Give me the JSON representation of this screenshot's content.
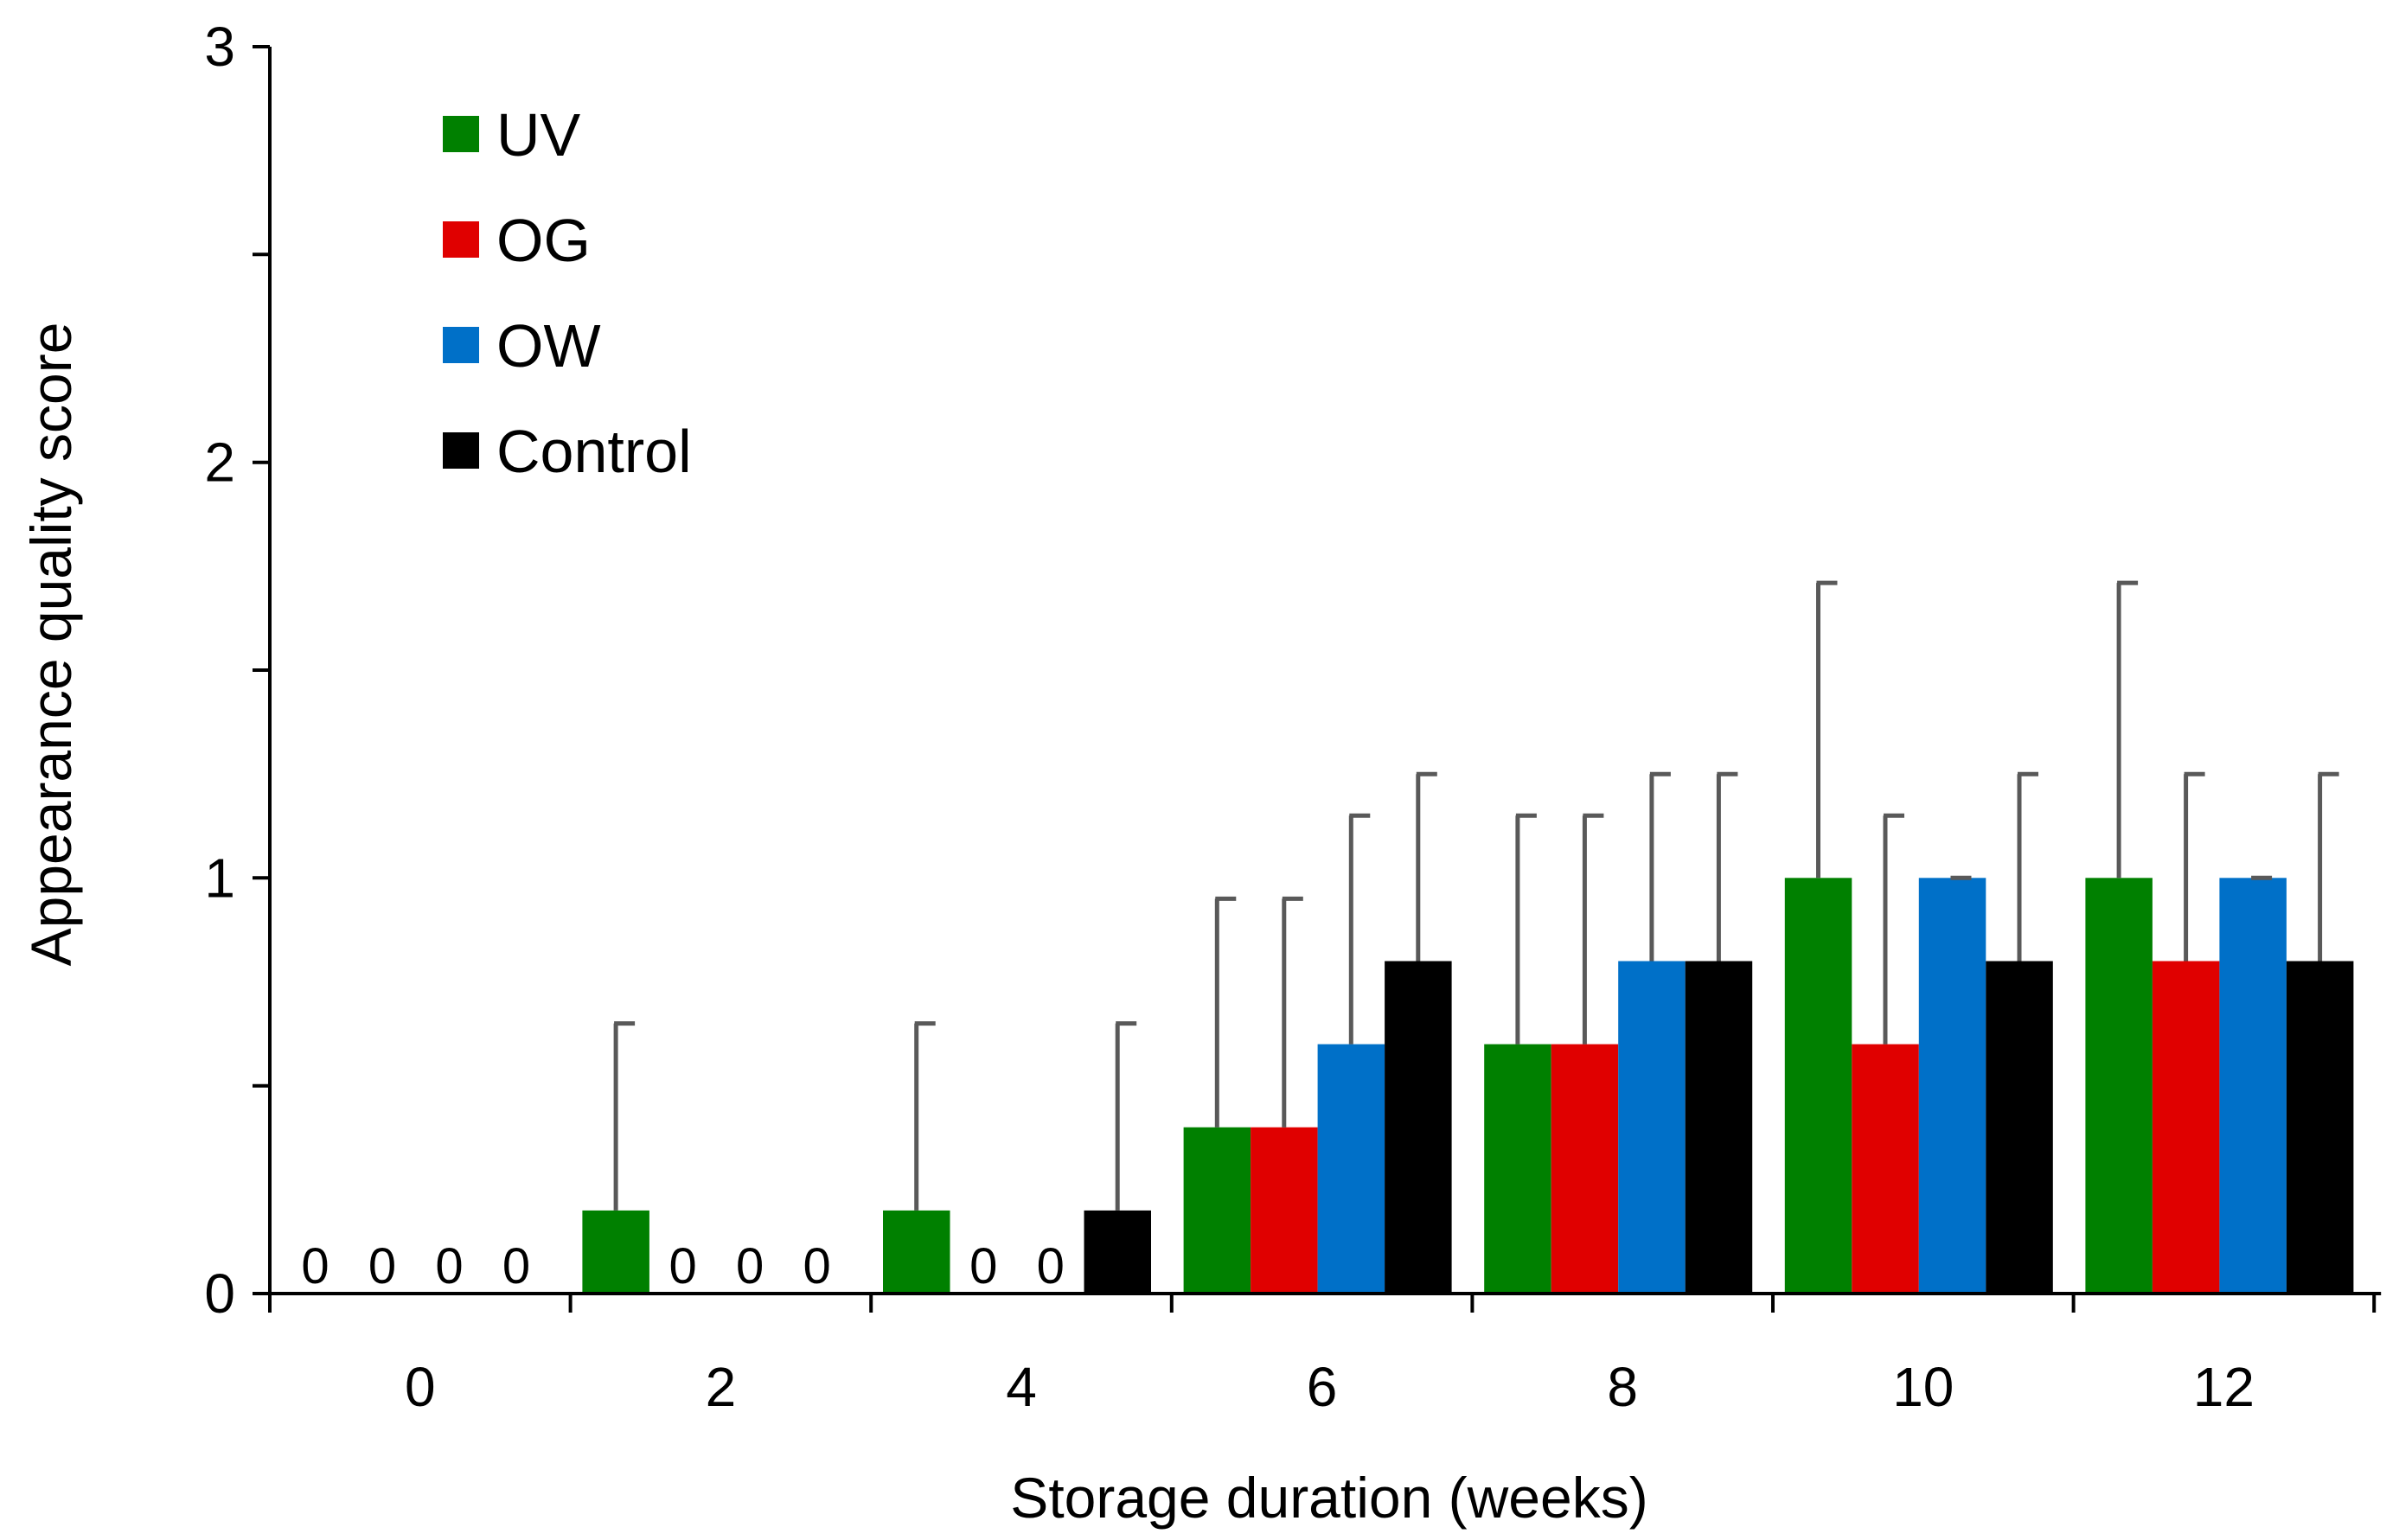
{
  "chart_data": {
    "type": "bar",
    "title": "",
    "xlabel": "Storage duration (weeks)",
    "ylabel": "Appearance quality score",
    "ylim": [
      0,
      3
    ],
    "y_ticks": [
      "0",
      "1",
      "2",
      "3"
    ],
    "categories": [
      "0",
      "2",
      "4",
      "6",
      "8",
      "10",
      "12"
    ],
    "legend_position": "top-left",
    "grid": false,
    "zero_label": "0",
    "series": [
      {
        "name": "UV",
        "color": "#008000",
        "values": [
          0,
          0.2,
          0.2,
          0.4,
          0.6,
          1.0,
          1.0
        ],
        "error_top": [
          null,
          0.65,
          0.65,
          0.95,
          1.15,
          1.71,
          1.71
        ],
        "show_zero_label": [
          true,
          false,
          false,
          false,
          false,
          false,
          false
        ]
      },
      {
        "name": "OG",
        "color": "#e00000",
        "values": [
          0,
          0,
          0,
          0.4,
          0.6,
          0.6,
          0.8
        ],
        "error_top": [
          null,
          null,
          null,
          0.95,
          1.15,
          1.15,
          1.25
        ],
        "show_zero_label": [
          true,
          true,
          true,
          false,
          false,
          false,
          false
        ]
      },
      {
        "name": "OW",
        "color": "#0070c8",
        "values": [
          0,
          0,
          0,
          0.6,
          0.8,
          1.0,
          1.0
        ],
        "error_top": [
          null,
          null,
          null,
          1.15,
          1.25,
          1.0,
          1.0
        ],
        "show_zero_label": [
          true,
          true,
          true,
          false,
          false,
          false,
          false
        ]
      },
      {
        "name": "Control",
        "color": "#000000",
        "values": [
          0,
          0,
          0.2,
          0.8,
          0.8,
          0.8,
          0.8
        ],
        "error_top": [
          null,
          null,
          0.65,
          1.25,
          1.25,
          1.25,
          1.25
        ],
        "show_zero_label": [
          true,
          true,
          false,
          false,
          false,
          false,
          false
        ]
      }
    ]
  }
}
